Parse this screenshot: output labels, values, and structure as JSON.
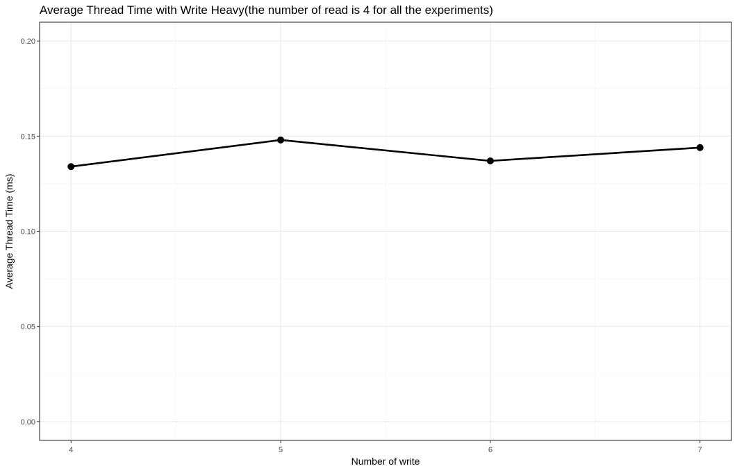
{
  "chart_data": {
    "type": "line",
    "title": "Average Thread Time with Write Heavy(the number of read is 4 for all the experiments)",
    "xlabel": "Number of write",
    "ylabel": "Average Thread Time (ms)",
    "x": [
      4,
      5,
      6,
      7
    ],
    "series": [
      {
        "values": [
          0.134,
          0.148,
          0.137,
          0.144
        ]
      }
    ],
    "xlim": [
      3.85,
      7.15
    ],
    "ylim": [
      -0.0099,
      0.2099
    ],
    "x_ticks": [
      4,
      5,
      6,
      7
    ],
    "y_ticks": [
      0.0,
      0.05,
      0.1,
      0.15,
      0.2
    ],
    "x_tick_labels": [
      "4",
      "5",
      "6",
      "7"
    ],
    "y_tick_labels": [
      "0.00",
      "0.05",
      "0.10",
      "0.15",
      "0.20"
    ],
    "grid": true,
    "line_color": "#000000",
    "point_color": "#000000",
    "panel_border_color": "#333333"
  }
}
